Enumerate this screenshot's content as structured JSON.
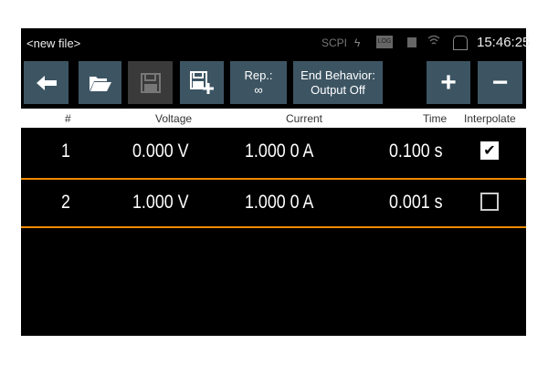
{
  "status_bar": {
    "file_name": "<new file>",
    "scpi": "SCPI",
    "icons": [
      "lightning-icon",
      "log-icon",
      "usb-icon",
      "wifi-icon",
      "display-icon"
    ],
    "time": "15:46:25"
  },
  "toolbar": {
    "back_icon": "arrow-left-icon",
    "open_icon": "folder-open-icon",
    "save_icon": "save-icon",
    "save_as_icon": "save-as-icon",
    "repetitions_label": "Rep.:",
    "repetitions_value": "∞",
    "end_behavior_label": "End Behavior:",
    "end_behavior_value": "Output Off",
    "add_label": "+",
    "remove_label": "−"
  },
  "table": {
    "headers": {
      "index": "#",
      "voltage": "Voltage",
      "current": "Current",
      "time": "Time",
      "interpolate": "Interpolate"
    },
    "rows": [
      {
        "index": "1",
        "voltage": "0.000 V",
        "current": "1.000 0 A",
        "time": "0.100 s",
        "interpolate": true
      },
      {
        "index": "2",
        "voltage": "1.000 V",
        "current": "1.000 0 A",
        "time": "0.001 s",
        "interpolate": false
      }
    ],
    "selected_row": 2
  },
  "colors": {
    "button": "#3d5563",
    "selection": "#f08a00"
  }
}
